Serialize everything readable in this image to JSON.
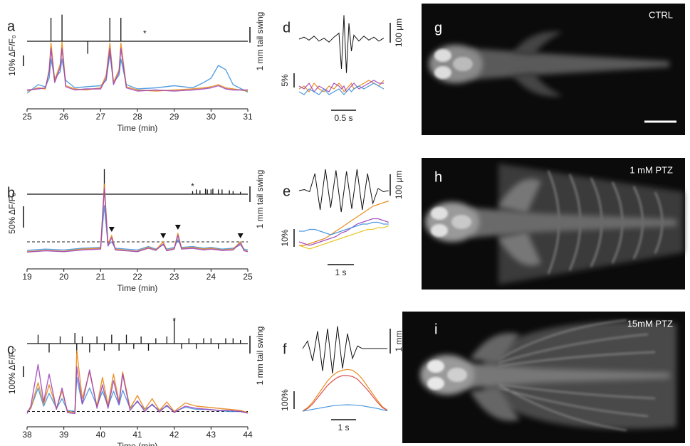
{
  "chart_data": [
    {
      "type": "line",
      "letter": "a",
      "xlabel": "Time (min)",
      "xlim": [
        25,
        31
      ],
      "xticks": [
        25,
        26,
        27,
        28,
        29,
        30,
        31
      ],
      "df_scale": {
        "value": 10,
        "label": "10% ΔF/F₀"
      },
      "tail_scale": {
        "value": 1,
        "label": "1 mm tail swing"
      },
      "asterisk": "*",
      "asterisk_x": 28.2,
      "tail": {
        "x": [
          25.65,
          25.95,
          26.65,
          27.25,
          27.55
        ],
        "values": [
          1.5,
          1.7,
          -0.8,
          1.5,
          1.5
        ]
      },
      "x": [
        25,
        25.3,
        25.5,
        25.6,
        25.65,
        25.75,
        25.9,
        25.95,
        26.05,
        26.3,
        26.6,
        27,
        27.15,
        27.25,
        27.35,
        27.5,
        27.55,
        27.7,
        28,
        28.5,
        29,
        29.5,
        29.8,
        30,
        30.2,
        30.4,
        30.6,
        31
      ],
      "series": [
        {
          "color": "#3a8fdc",
          "values": [
            -2,
            6,
            4,
            12,
            30,
            12,
            18,
            30,
            10,
            3,
            4,
            5,
            10,
            35,
            8,
            15,
            30,
            6,
            2,
            3,
            5,
            3,
            8,
            12,
            24,
            20,
            6,
            -1
          ]
        },
        {
          "color": "#e8820c",
          "values": [
            0,
            3,
            2,
            20,
            45,
            10,
            25,
            46,
            5,
            2,
            1,
            3,
            15,
            45,
            8,
            20,
            45,
            4,
            1,
            0,
            1,
            2,
            3,
            4,
            6,
            3,
            2,
            0
          ]
        },
        {
          "color": "#9b3fb8",
          "values": [
            1,
            2,
            3,
            18,
            40,
            8,
            22,
            40,
            4,
            1,
            2,
            2,
            12,
            40,
            6,
            18,
            40,
            3,
            0,
            1,
            0,
            1,
            2,
            3,
            5,
            2,
            1,
            1
          ]
        }
      ]
    },
    {
      "type": "line",
      "letter": "b",
      "xlabel": "Time (min)",
      "xlim": [
        19,
        25
      ],
      "xticks": [
        19,
        20,
        21,
        22,
        23,
        24,
        25
      ],
      "df_scale": {
        "value": 50,
        "label": "50% ΔF/F₀"
      },
      "tail_scale": {
        "value": 1,
        "label": "1 mm tail swing"
      },
      "asterisk": "*",
      "asterisk_x": 23.5,
      "threshold": 25,
      "markers_x": [
        21.3,
        22.7,
        23.1,
        24.8
      ],
      "tail": {
        "x": [
          21.1,
          23.5,
          23.6,
          23.7,
          23.85,
          23.9,
          24.0,
          24.05,
          24.2,
          24.3,
          24.5,
          24.6,
          24.8
        ],
        "values": [
          1.6,
          0.2,
          0.3,
          0.25,
          0.35,
          0.3,
          0.3,
          0.35,
          0.3,
          0.3,
          0.25,
          0.2,
          0.15
        ]
      },
      "x": [
        19,
        19.5,
        20,
        20.5,
        21,
        21.1,
        21.2,
        21.3,
        21.4,
        21.7,
        22,
        22.3,
        22.5,
        22.7,
        22.8,
        23,
        23.1,
        23.2,
        23.5,
        23.8,
        24,
        24.3,
        24.6,
        24.8,
        24.9,
        25
      ],
      "series": [
        {
          "color": "#3a8fdc",
          "values": [
            5,
            8,
            6,
            10,
            12,
            110,
            18,
            25,
            10,
            8,
            6,
            14,
            8,
            18,
            8,
            12,
            30,
            12,
            14,
            10,
            12,
            8,
            10,
            18,
            8,
            6
          ]
        },
        {
          "color": "#e8820c",
          "values": [
            2,
            5,
            3,
            8,
            10,
            160,
            20,
            40,
            8,
            5,
            3,
            12,
            6,
            25,
            5,
            10,
            45,
            10,
            12,
            8,
            10,
            6,
            8,
            25,
            5,
            3
          ]
        },
        {
          "color": "#9b3fb8",
          "values": [
            1,
            4,
            2,
            6,
            8,
            150,
            15,
            35,
            6,
            4,
            2,
            10,
            5,
            20,
            4,
            8,
            40,
            8,
            10,
            6,
            8,
            5,
            6,
            22,
            4,
            2
          ]
        }
      ]
    },
    {
      "type": "line",
      "letter": "c",
      "xlabel": "Time (min)",
      "xlim": [
        38,
        44
      ],
      "xticks": [
        38,
        39,
        40,
        41,
        42,
        43,
        44
      ],
      "df_scale": {
        "value": 100,
        "label": "100% ΔF/F₀"
      },
      "tail_scale": {
        "value": 1,
        "label": "1 mm tail swing"
      },
      "asterisk": "*",
      "asterisk_x": 42,
      "threshold": 30,
      "tail": {
        "x": [
          38.3,
          38.6,
          38.9,
          39.3,
          39.35,
          39.5,
          39.7,
          39.9,
          40.1,
          40.3,
          40.5,
          40.7,
          40.9,
          41.1,
          41.3,
          41.5,
          41.8,
          42,
          42.2,
          42.4,
          42.6,
          42.8,
          43,
          43.2,
          43.4,
          43.6,
          43.8
        ],
        "values": [
          0.5,
          -0.5,
          0.4,
          0.6,
          -0.6,
          0.4,
          -0.5,
          0.4,
          -0.4,
          0.5,
          -0.4,
          0.5,
          -0.3,
          0.4,
          -0.4,
          0.3,
          0.4,
          1.4,
          -0.3,
          0.3,
          -0.3,
          0.3,
          0.3,
          -0.3,
          0.3,
          0.3,
          0.2
        ]
      },
      "x": [
        38,
        38.1,
        38.3,
        38.45,
        38.6,
        38.8,
        38.95,
        39.1,
        39.3,
        39.35,
        39.5,
        39.7,
        39.9,
        40.05,
        40.2,
        40.35,
        40.5,
        40.6,
        40.8,
        41,
        41.2,
        41.4,
        41.6,
        41.8,
        42,
        42.3,
        42.6,
        42.9,
        43.2,
        43.5,
        43.8,
        44
      ],
      "series": [
        {
          "color": "#3a8fdc",
          "values": [
            30,
            60,
            250,
            80,
            200,
            60,
            150,
            40,
            30,
            350,
            100,
            250,
            80,
            220,
            80,
            220,
            90,
            230,
            60,
            120,
            50,
            90,
            40,
            80,
            30,
            70,
            50,
            50,
            40,
            30,
            30,
            20
          ]
        },
        {
          "color": "#e8820c",
          "values": [
            20,
            60,
            300,
            100,
            280,
            60,
            220,
            30,
            20,
            600,
            150,
            400,
            80,
            350,
            90,
            380,
            120,
            400,
            60,
            180,
            50,
            150,
            40,
            120,
            30,
            110,
            80,
            70,
            60,
            50,
            40,
            20
          ]
        },
        {
          "color": "#9b3fb8",
          "values": [
            10,
            80,
            470,
            120,
            380,
            50,
            250,
            20,
            10,
            450,
            100,
            420,
            60,
            280,
            60,
            320,
            100,
            380,
            40,
            130,
            30,
            100,
            25,
            90,
            20,
            80,
            60,
            50,
            40,
            40,
            30,
            15
          ]
        }
      ]
    },
    {
      "type": "trace",
      "letter": "d",
      "tail_scale": {
        "value": 100,
        "label": "100 µm"
      },
      "df_scale": {
        "value": 5,
        "label": "5%"
      },
      "time_scale": {
        "value": 0.5,
        "label": "0.5 s"
      },
      "x": [
        0,
        0.1,
        0.2,
        0.3,
        0.4,
        0.5,
        0.6,
        0.7,
        0.8,
        0.85,
        0.9,
        0.95,
        1.0,
        1.05,
        1.1,
        1.2,
        1.3,
        1.4,
        1.5,
        1.6,
        1.7
      ],
      "tail": [
        0,
        10,
        -5,
        15,
        -10,
        5,
        -15,
        10,
        30,
        -150,
        120,
        -170,
        80,
        -60,
        20,
        -10,
        15,
        -5,
        10,
        -10,
        5
      ],
      "series": [
        {
          "color": "#e8820c",
          "values": [
            0,
            1,
            -1,
            2,
            0,
            -1,
            1,
            0,
            2,
            1,
            -1,
            0,
            1,
            2,
            0,
            1,
            2,
            3,
            2,
            1,
            3
          ]
        },
        {
          "color": "#9b3fb8",
          "values": [
            1,
            0,
            2,
            -1,
            1,
            0,
            -1,
            2,
            1,
            0,
            1,
            -1,
            0,
            1,
            2,
            0,
            1,
            2,
            3,
            2,
            2
          ]
        },
        {
          "color": "#3a8fdc",
          "values": [
            -1,
            -2,
            0,
            -1,
            -2,
            0,
            -2,
            -1,
            0,
            -1,
            -2,
            -1,
            0,
            -1,
            0,
            1,
            0,
            1,
            2,
            1,
            0
          ]
        }
      ]
    },
    {
      "type": "trace",
      "letter": "e",
      "tail_scale": {
        "value": 100,
        "label": "100 µm"
      },
      "df_scale": {
        "value": 10,
        "label": "10%"
      },
      "time_scale": {
        "value": 1,
        "label": "1 s"
      },
      "x": [
        0,
        0.2,
        0.4,
        0.6,
        0.8,
        1,
        1.2,
        1.4,
        1.6,
        1.8,
        2,
        2.2,
        2.4,
        2.6,
        2.8,
        3,
        3.2,
        3.4
      ],
      "tail": [
        0,
        5,
        -5,
        80,
        -90,
        100,
        -80,
        95,
        -100,
        90,
        -85,
        100,
        -90,
        80,
        -60,
        10,
        -5,
        0
      ],
      "series": [
        {
          "color": "#e8820c",
          "values": [
            0,
            0,
            1,
            2,
            3,
            4,
            6,
            8,
            10,
            12,
            14,
            16,
            18,
            20,
            22,
            23,
            24,
            25
          ]
        },
        {
          "color": "#9b3fb8",
          "values": [
            2,
            1,
            0,
            1,
            2,
            3,
            4,
            5,
            7,
            8,
            10,
            12,
            13,
            14,
            15,
            15,
            14,
            13
          ]
        },
        {
          "color": "#3a8fdc",
          "values": [
            8,
            8,
            9,
            9,
            8,
            7,
            6,
            7,
            8,
            9,
            10,
            11,
            12,
            12,
            13,
            13,
            12,
            12
          ]
        },
        {
          "color": "#e8c31a",
          "values": [
            0,
            -1,
            -2,
            -1,
            0,
            1,
            2,
            3,
            4,
            5,
            6,
            7,
            8,
            9,
            9,
            10,
            10,
            11
          ]
        }
      ]
    },
    {
      "type": "trace",
      "letter": "f",
      "tail_scale": {
        "value": 1,
        "label": "1 mm"
      },
      "df_scale": {
        "value": 100,
        "label": "100%"
      },
      "time_scale": {
        "value": 1,
        "label": "1 s"
      },
      "x": [
        0,
        0.2,
        0.4,
        0.6,
        0.8,
        1,
        1.2,
        1.4,
        1.6,
        1.8,
        2,
        2.2,
        2.4,
        2.6,
        2.8,
        3,
        3.2,
        3.4
      ],
      "tail": [
        0,
        0.3,
        -0.5,
        0.7,
        -0.9,
        0.8,
        -1.0,
        0.9,
        -0.8,
        0.6,
        -0.4,
        0.1,
        0,
        0,
        0,
        0,
        0,
        0
      ],
      "series": [
        {
          "color": "#e8820c",
          "values": [
            0,
            20,
            50,
            90,
            130,
            170,
            200,
            220,
            230,
            235,
            230,
            210,
            180,
            140,
            100,
            60,
            25,
            5
          ]
        },
        {
          "color": "#d93a3a",
          "values": [
            0,
            15,
            40,
            75,
            110,
            145,
            170,
            190,
            200,
            200,
            195,
            180,
            150,
            120,
            85,
            50,
            20,
            5
          ]
        },
        {
          "color": "#3a8fdc",
          "values": [
            0,
            5,
            10,
            15,
            20,
            25,
            30,
            33,
            35,
            36,
            35,
            33,
            30,
            25,
            20,
            15,
            8,
            2
          ]
        }
      ]
    }
  ],
  "images": [
    {
      "letter": "g",
      "label": "CTRL"
    },
    {
      "letter": "h",
      "label": "1 mM PTZ"
    },
    {
      "letter": "i",
      "label": "15mM PTZ"
    }
  ]
}
